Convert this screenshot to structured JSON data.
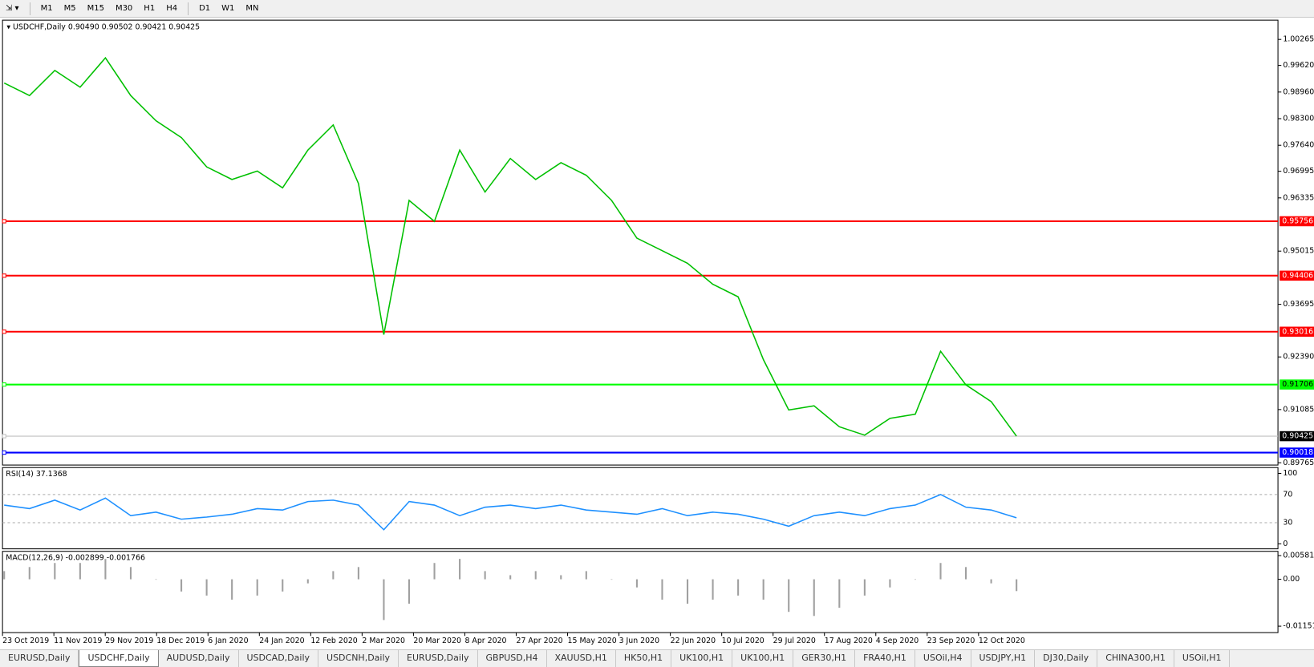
{
  "toolbar": {
    "timeframes": [
      "M1",
      "M5",
      "M15",
      "M30",
      "H1",
      "H4",
      "D1",
      "W1",
      "MN"
    ]
  },
  "chart_data": {
    "type": "line",
    "title": "USDCHF,Daily",
    "quote": "0.90490 0.90502 0.90421 0.90425",
    "ylim": [
      0.89709,
      1.00743
    ],
    "yticks": [
      1.00265,
      {
        "value": 0.9962,
        "label": "0.99620"
      },
      {
        "value": 0.9896,
        "label": "0.98960"
      },
      {
        "value": 0.983,
        "label": "0.98300"
      },
      {
        "value": 0.9764,
        "label": "0.97640"
      },
      0.96995,
      0.96335,
      0.95015,
      0.93695,
      {
        "value": 0.9239,
        "label": "0.92390"
      },
      0.91085,
      0.89765
    ],
    "levels": [
      {
        "value": 0.95756,
        "color": "#ff0000"
      },
      {
        "value": 0.94406,
        "color": "#ff0000"
      },
      {
        "value": 0.93016,
        "color": "#ff0000"
      },
      {
        "value": 0.91706,
        "color": "#00ff00"
      },
      {
        "value": 0.90018,
        "color": "#0000ff"
      }
    ],
    "current": {
      "value": 0.90425,
      "color": "#c0c0c0"
    },
    "price": {
      "color": "#00c000",
      "values": [
        0.99184,
        0.98872,
        0.99496,
        0.9908,
        0.99808,
        0.98872,
        0.98248,
        0.97832,
        0.97104,
        0.96792,
        0.97,
        0.96584,
        0.9752,
        0.98144,
        0.96688,
        0.92945,
        0.96272,
        0.95752,
        0.9752,
        0.9648,
        0.97312,
        0.96792,
        0.97208,
        0.96896,
        0.96272,
        0.95337,
        0.95025,
        0.94713,
        0.94193,
        0.93881,
        0.92322,
        0.91074,
        0.91178,
        0.90658,
        0.9045,
        0.90866,
        0.9097,
        0.9253,
        0.91698,
        0.91282,
        0.90425
      ]
    },
    "categories": [
      "23 Oct 2019",
      "11 Nov 2019",
      "29 Nov 2019",
      "18 Dec 2019",
      "6 Jan 2020",
      "24 Jan 2020",
      "12 Feb 2020",
      "2 Mar 2020",
      "20 Mar 2020",
      "8 Apr 2020",
      "27 Apr 2020",
      "15 May 2020",
      "3 Jun 2020",
      "22 Jun 2020",
      "10 Jul 2020",
      "29 Jul 2020",
      "17 Aug 2020",
      "4 Sep 2020",
      "23 Sep 2020",
      "12 Oct 2020"
    ],
    "rsi": {
      "title": "RSI(14) 37.1368",
      "ylim": [
        -7.1,
        108.3
      ],
      "yticks": [
        100,
        70,
        30,
        0
      ],
      "color": "#1e90ff",
      "values": [
        55,
        50,
        62,
        48,
        65,
        40,
        45,
        35,
        38,
        42,
        50,
        48,
        60,
        62,
        55,
        20,
        60,
        55,
        40,
        52,
        55,
        50,
        55,
        48,
        45,
        42,
        50,
        40,
        45,
        42,
        35,
        25,
        40,
        45,
        40,
        50,
        55,
        70,
        52,
        48,
        37
      ]
    },
    "macd": {
      "title": "MACD(12,26,9) -0.002899 -0.001766",
      "ylim": [
        -0.013092,
        0.006858
      ],
      "yticks": [
        0.005818,
        {
          "value": 0,
          "label": "0.00"
        },
        -0.011514
      ],
      "color": "#a0a0a0",
      "values": [
        0.002,
        0.003,
        0.004,
        0.004,
        0.005,
        0.003,
        0.0,
        -0.003,
        -0.004,
        -0.005,
        -0.004,
        -0.003,
        -0.001,
        0.002,
        0.003,
        -0.01,
        -0.006,
        0.004,
        0.005,
        0.002,
        0.001,
        0.002,
        0.001,
        0.002,
        0.0,
        -0.002,
        -0.005,
        -0.006,
        -0.005,
        -0.004,
        -0.005,
        -0.008,
        -0.009,
        -0.007,
        -0.004,
        -0.002,
        0.0,
        0.004,
        0.003,
        -0.001,
        -0.002899
      ]
    }
  },
  "tabs": {
    "items": [
      "EURUSD,Daily",
      "USDCHF,Daily",
      "AUDUSD,Daily",
      "USDCAD,Daily",
      "USDCNH,Daily",
      "EURUSD,Daily",
      "GBPUSD,H4",
      "XAUUSD,H1",
      "HK50,H1",
      "UK100,H1",
      "UK100,H1",
      "GER30,H1",
      "FRA40,H1",
      "USOil,H4",
      "USDJPY,H1",
      "DJ30,Daily",
      "CHINA300,H1",
      "USOil,H1"
    ],
    "active": 1
  }
}
